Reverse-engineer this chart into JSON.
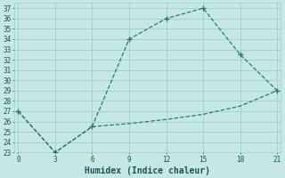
{
  "line1_x": [
    0,
    3,
    6,
    9,
    12,
    15,
    18,
    21
  ],
  "line1_y": [
    27,
    23,
    25.5,
    34,
    36,
    37,
    32.5,
    29
  ],
  "line2_x": [
    0,
    3,
    6,
    9,
    12,
    15,
    18,
    21
  ],
  "line2_y": [
    27,
    23,
    25.5,
    25.8,
    26.2,
    26.7,
    27.5,
    29
  ],
  "line_color": "#2a7a6a",
  "bg_color": "#c5e8e4",
  "grid_color": "#9ecece",
  "xlabel": "Humidex (Indice chaleur)",
  "xlim": [
    -0.3,
    21.3
  ],
  "ylim": [
    23,
    37.5
  ],
  "xticks": [
    0,
    3,
    6,
    9,
    12,
    15,
    18,
    21
  ],
  "yticks": [
    23,
    24,
    25,
    26,
    27,
    28,
    29,
    30,
    31,
    32,
    33,
    34,
    35,
    36,
    37
  ],
  "font_color": "#1a5555",
  "tick_fontsize": 5.5,
  "xlabel_fontsize": 7.0
}
